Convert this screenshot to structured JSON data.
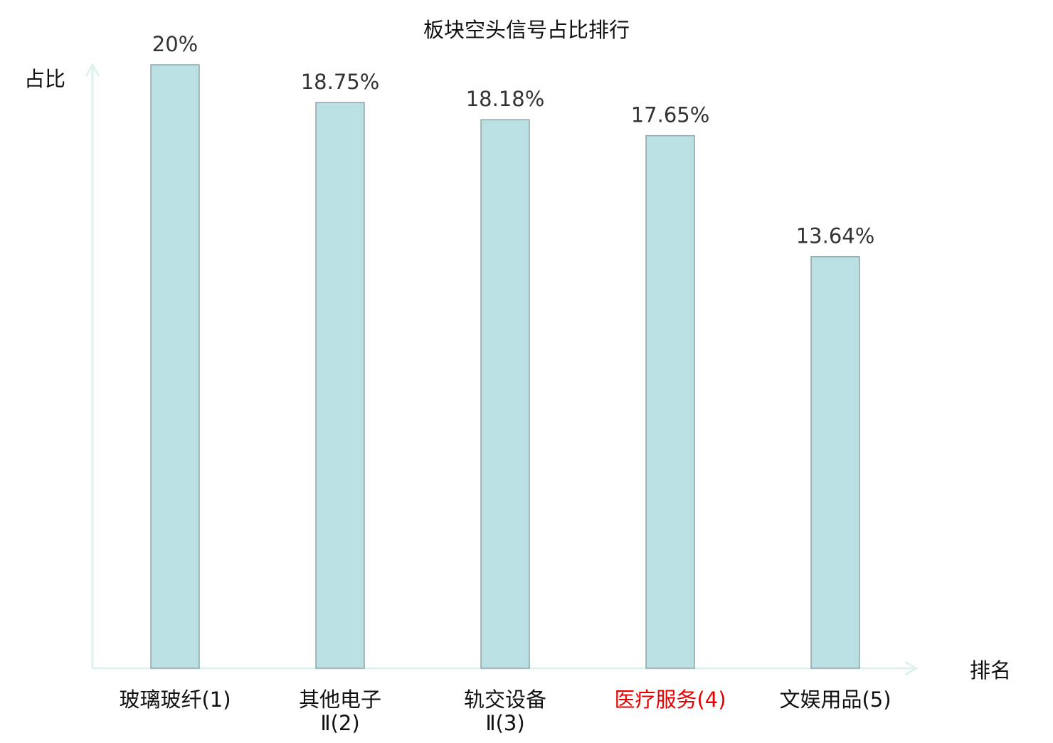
{
  "chart_data": {
    "type": "bar",
    "title": "板块空头信号占比排行",
    "xlabel": "排名",
    "ylabel": "占比",
    "categories": [
      "玻璃玻纤(1)",
      "其他电子Ⅱ(2)",
      "轨交设备Ⅱ(3)",
      "医疗服务(4)",
      "文娱用品(5)"
    ],
    "values": [
      20,
      18.75,
      18.18,
      17.65,
      13.64
    ],
    "data_labels": [
      "20%",
      "18.75%",
      "18.18%",
      "17.65%",
      "13.64%"
    ],
    "highlight_index": 3,
    "ylim": [
      0,
      20
    ],
    "grid": false,
    "legend": "none",
    "colors": {
      "bar_fill": "#bbe0e3",
      "bar_stroke": "#8fa6a8",
      "axis": "#dff2ef",
      "label": "#333333",
      "highlight": "#e60000"
    }
  }
}
